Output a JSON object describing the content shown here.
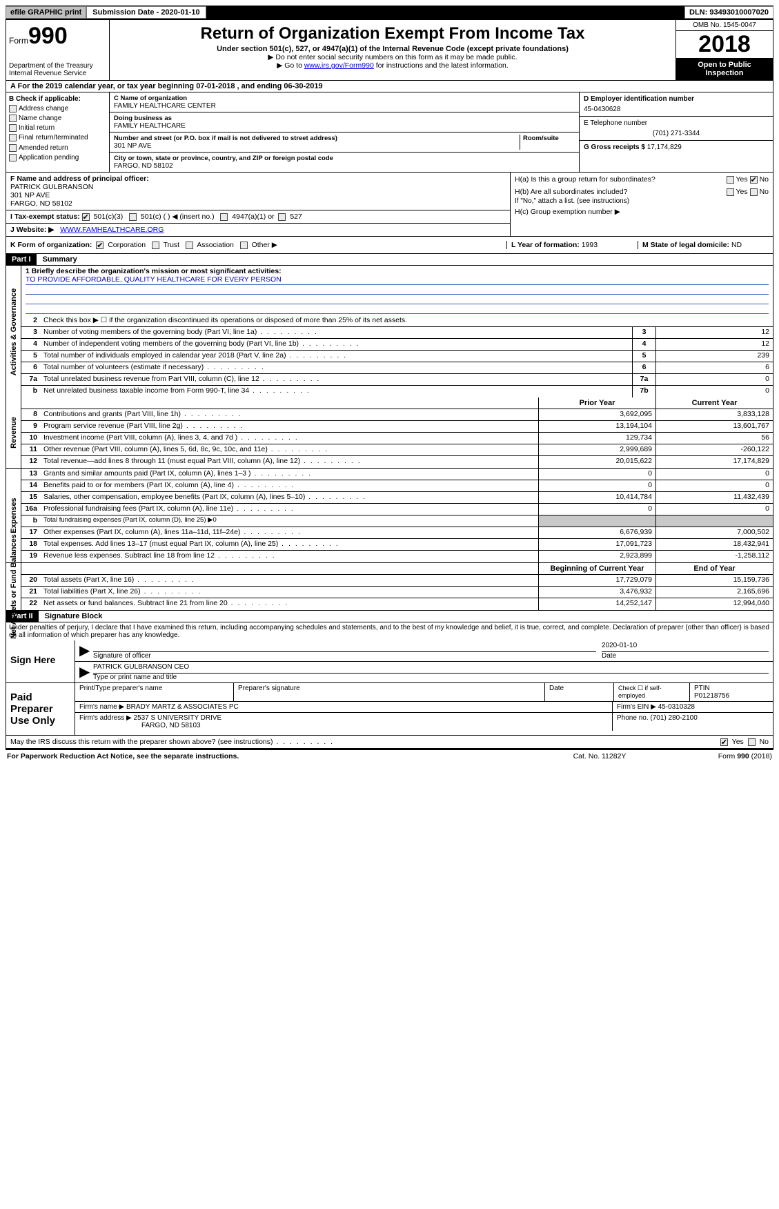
{
  "topbar": {
    "efile": "efile GRAPHIC print",
    "submission": "Submission Date - 2020-01-10",
    "dln": "DLN: 93493010007020"
  },
  "header": {
    "form_prefix": "Form",
    "form_number": "990",
    "dept1": "Department of the Treasury",
    "dept2": "Internal Revenue Service",
    "title": "Return of Organization Exempt From Income Tax",
    "sub1": "Under section 501(c), 527, or 4947(a)(1) of the Internal Revenue Code (except private foundations)",
    "sub2": "▶ Do not enter social security numbers on this form as it may be made public.",
    "sub3_prefix": "▶ Go to ",
    "sub3_link": "www.irs.gov/Form990",
    "sub3_suffix": " for instructions and the latest information.",
    "omb": "OMB No. 1545-0047",
    "year": "2018",
    "open": "Open to Public Inspection"
  },
  "row_a": "A   For the 2019 calendar year, or tax year beginning 07-01-2018       , and ending 06-30-2019",
  "checkboxes": {
    "b_label": "B Check if applicable:",
    "items": [
      "Address change",
      "Name change",
      "Initial return",
      "Final return/terminated",
      "Amended return",
      "Application pending"
    ]
  },
  "org": {
    "c_label": "C Name of organization",
    "name": "FAMILY HEALTHCARE CENTER",
    "dba_label": "Doing business as",
    "dba": "FAMILY HEALTHCARE",
    "addr_label": "Number and street (or P.O. box if mail is not delivered to street address)",
    "room_label": "Room/suite",
    "addr": "301 NP AVE",
    "city_label": "City or town, state or province, country, and ZIP or foreign postal code",
    "city": "FARGO, ND  58102"
  },
  "right_col": {
    "d_label": "D Employer identification number",
    "ein": "45-0430628",
    "e_label": "E Telephone number",
    "phone": "(701) 271-3344",
    "g_label": "G Gross receipts $",
    "g_val": "17,174,829"
  },
  "f_section": {
    "f_label": "F Name and address of principal officer:",
    "officer": "PATRICK GULBRANSON",
    "officer_addr1": "301 NP AVE",
    "officer_addr2": "FARGO, ND  58102",
    "i_label": "I   Tax-exempt status:",
    "i_opts": [
      "501(c)(3)",
      "501(c) (   ) ◀ (insert no.)",
      "4947(a)(1) or",
      "527"
    ],
    "j_label": "J   Website: ▶",
    "website": "WWW.FAMHEALTHCARE.ORG"
  },
  "h_section": {
    "ha": "H(a)   Is this a group return for subordinates?",
    "hb": "H(b)   Are all subordinates included?",
    "hb_note": "If \"No,\" attach a list. (see instructions)",
    "hc": "H(c)   Group exemption number ▶",
    "yes": "Yes",
    "no": "No"
  },
  "row_k": {
    "k_label": "K Form of organization:",
    "opts": [
      "Corporation",
      "Trust",
      "Association",
      "Other ▶"
    ],
    "l_label": "L Year of formation:",
    "l_val": "1993",
    "m_label": "M State of legal domicile:",
    "m_val": "ND"
  },
  "part1": {
    "hdr": "Part I",
    "title": "Summary",
    "q1_label": "1  Briefly describe the organization's mission or most significant activities:",
    "mission": "TO PROVIDE AFFORDABLE, QUALITY HEALTHCARE FOR EVERY PERSON",
    "q2": "Check this box ▶ ☐  if the organization discontinued its operations or disposed of more than 25% of its net assets."
  },
  "side_labels": {
    "gov": "Activities & Governance",
    "rev": "Revenue",
    "exp": "Expenses",
    "net": "Net Assets or Fund Balances"
  },
  "gov_lines": [
    {
      "n": "3",
      "t": "Number of voting members of the governing body (Part VI, line 1a)",
      "box": "3",
      "v": "12"
    },
    {
      "n": "4",
      "t": "Number of independent voting members of the governing body (Part VI, line 1b)",
      "box": "4",
      "v": "12"
    },
    {
      "n": "5",
      "t": "Total number of individuals employed in calendar year 2018 (Part V, line 2a)",
      "box": "5",
      "v": "239"
    },
    {
      "n": "6",
      "t": "Total number of volunteers (estimate if necessary)",
      "box": "6",
      "v": "6"
    },
    {
      "n": "7a",
      "t": "Total unrelated business revenue from Part VIII, column (C), line 12",
      "box": "7a",
      "v": "0"
    },
    {
      "n": "b",
      "t": "Net unrelated business taxable income from Form 990-T, line 34",
      "box": "7b",
      "v": "0"
    }
  ],
  "col_headers": {
    "prior": "Prior Year",
    "current": "Current Year",
    "boy": "Beginning of Current Year",
    "eoy": "End of Year"
  },
  "rev_lines": [
    {
      "n": "8",
      "t": "Contributions and grants (Part VIII, line 1h)",
      "p": "3,692,095",
      "c": "3,833,128"
    },
    {
      "n": "9",
      "t": "Program service revenue (Part VIII, line 2g)",
      "p": "13,194,104",
      "c": "13,601,767"
    },
    {
      "n": "10",
      "t": "Investment income (Part VIII, column (A), lines 3, 4, and 7d )",
      "p": "129,734",
      "c": "56"
    },
    {
      "n": "11",
      "t": "Other revenue (Part VIII, column (A), lines 5, 6d, 8c, 9c, 10c, and 11e)",
      "p": "2,999,689",
      "c": "-260,122"
    },
    {
      "n": "12",
      "t": "Total revenue—add lines 8 through 11 (must equal Part VIII, column (A), line 12)",
      "p": "20,015,622",
      "c": "17,174,829"
    }
  ],
  "exp_lines": [
    {
      "n": "13",
      "t": "Grants and similar amounts paid (Part IX, column (A), lines 1–3 )",
      "p": "0",
      "c": "0"
    },
    {
      "n": "14",
      "t": "Benefits paid to or for members (Part IX, column (A), line 4)",
      "p": "0",
      "c": "0"
    },
    {
      "n": "15",
      "t": "Salaries, other compensation, employee benefits (Part IX, column (A), lines 5–10)",
      "p": "10,414,784",
      "c": "11,432,439"
    },
    {
      "n": "16a",
      "t": "Professional fundraising fees (Part IX, column (A), line 11e)",
      "p": "0",
      "c": "0"
    },
    {
      "n": "b",
      "t": "Total fundraising expenses (Part IX, column (D), line 25) ▶0",
      "p": "",
      "c": "",
      "shade": true,
      "small": true
    },
    {
      "n": "17",
      "t": "Other expenses (Part IX, column (A), lines 11a–11d, 11f–24e)",
      "p": "6,676,939",
      "c": "7,000,502"
    },
    {
      "n": "18",
      "t": "Total expenses. Add lines 13–17 (must equal Part IX, column (A), line 25)",
      "p": "17,091,723",
      "c": "18,432,941"
    },
    {
      "n": "19",
      "t": "Revenue less expenses. Subtract line 18 from line 12",
      "p": "2,923,899",
      "c": "-1,258,112"
    }
  ],
  "net_lines": [
    {
      "n": "20",
      "t": "Total assets (Part X, line 16)",
      "p": "17,729,079",
      "c": "15,159,736"
    },
    {
      "n": "21",
      "t": "Total liabilities (Part X, line 26)",
      "p": "3,476,932",
      "c": "2,165,696"
    },
    {
      "n": "22",
      "t": "Net assets or fund balances. Subtract line 21 from line 20",
      "p": "14,252,147",
      "c": "12,994,040"
    }
  ],
  "part2": {
    "hdr": "Part II",
    "title": "Signature Block",
    "penalty": "Under penalties of perjury, I declare that I have examined this return, including accompanying schedules and statements, and to the best of my knowledge and belief, it is true, correct, and complete. Declaration of preparer (other than officer) is based on all information of which preparer has any knowledge."
  },
  "sign": {
    "label": "Sign Here",
    "date": "2020-01-10",
    "sig_label": "Signature of officer",
    "date_label": "Date",
    "name": "PATRICK GULBRANSON  CEO",
    "name_label": "Type or print name and title"
  },
  "paid": {
    "label": "Paid Preparer Use Only",
    "h1": "Print/Type preparer's name",
    "h2": "Preparer's signature",
    "h3": "Date",
    "h4_chk": "Check ☐ if self-employed",
    "h5_label": "PTIN",
    "ptin": "P01218756",
    "firm_label": "Firm's name   ▶",
    "firm": "BRADY MARTZ & ASSOCIATES PC",
    "ein_label": "Firm's EIN ▶",
    "ein": "45-0310328",
    "addr_label": "Firm's address ▶",
    "addr1": "2537 S UNIVERSITY DRIVE",
    "addr2": "FARGO, ND  58103",
    "phone_label": "Phone no.",
    "phone": "(701) 280-2100"
  },
  "discuss": {
    "q": "May the IRS discuss this return with the preparer shown above? (see instructions)",
    "yes": "Yes",
    "no": "No"
  },
  "footer": {
    "left": "For Paperwork Reduction Act Notice, see the separate instructions.",
    "mid": "Cat. No. 11282Y",
    "right": "Form 990 (2018)"
  },
  "colors": {
    "link": "#0000ee",
    "mission_text": "#0000cd",
    "shade": "#c8c8c8"
  }
}
